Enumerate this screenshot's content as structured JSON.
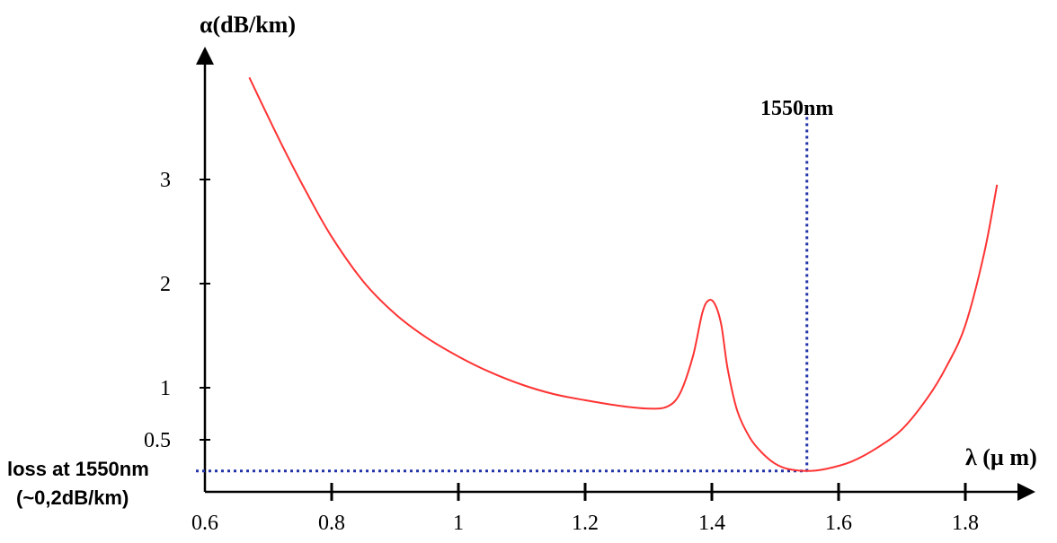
{
  "chart_data": {
    "type": "line",
    "title": "",
    "xlabel": "λ (µ m)",
    "ylabel": "α(dB/km)",
    "xlim": [
      0.6,
      1.9
    ],
    "ylim": [
      0,
      4
    ],
    "grid": false,
    "x_ticks": [
      {
        "value": 0.6,
        "label": "0.6"
      },
      {
        "value": 0.8,
        "label": "0.8"
      },
      {
        "value": 1.0,
        "label": "1"
      },
      {
        "value": 1.2,
        "label": "1.2"
      },
      {
        "value": 1.4,
        "label": "1.4"
      },
      {
        "value": 1.6,
        "label": "1.6"
      },
      {
        "value": 1.8,
        "label": "1.8"
      }
    ],
    "y_ticks": [
      {
        "value": 0.5,
        "label": "0.5"
      },
      {
        "value": 1,
        "label": "1"
      },
      {
        "value": 2,
        "label": "2"
      },
      {
        "value": 3,
        "label": "3"
      }
    ],
    "series": [
      {
        "color": "#ff3333",
        "x": [
          0.67,
          0.72,
          0.76,
          0.8,
          0.85,
          0.9,
          0.95,
          1.0,
          1.05,
          1.1,
          1.15,
          1.2,
          1.25,
          1.3,
          1.33,
          1.35,
          1.37,
          1.385,
          1.395,
          1.405,
          1.415,
          1.425,
          1.44,
          1.46,
          1.48,
          1.5,
          1.52,
          1.55,
          1.58,
          1.62,
          1.66,
          1.7,
          1.74,
          1.77,
          1.8,
          1.83,
          1.85
        ],
        "y": [
          3.98,
          3.35,
          2.88,
          2.45,
          2.02,
          1.71,
          1.48,
          1.3,
          1.15,
          1.03,
          0.94,
          0.88,
          0.83,
          0.8,
          0.82,
          0.95,
          1.3,
          1.72,
          1.84,
          1.8,
          1.6,
          1.18,
          0.78,
          0.52,
          0.37,
          0.27,
          0.22,
          0.2,
          0.22,
          0.29,
          0.42,
          0.6,
          0.9,
          1.2,
          1.6,
          2.3,
          2.95
        ]
      }
    ],
    "markers": {
      "vertical": {
        "x": 1.55,
        "y_top": 3.6,
        "label": "1550nm",
        "color": "#2233aa"
      },
      "horizontal": {
        "y": 0.2,
        "x_to": 1.55,
        "label_line1": "loss at 1550nm",
        "label_line2": "(~0,2dB/km)",
        "color": "#2233aa"
      }
    }
  }
}
